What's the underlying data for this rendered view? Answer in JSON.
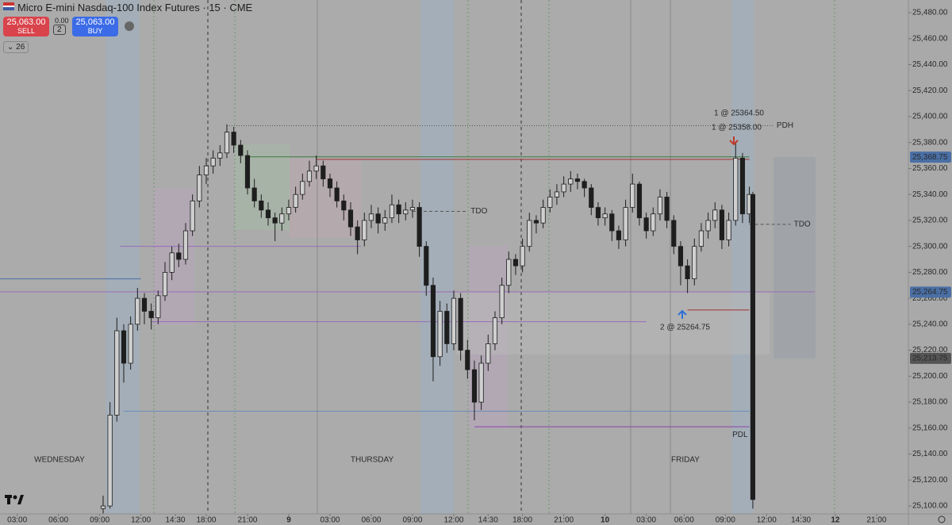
{
  "header": {
    "title": "Micro E-mini Nasdaq-100 Index Futures · 15 · CME",
    "sell_price": "25,063.00",
    "sell_label": "SELL",
    "spread": "0.00",
    "quantity": "2",
    "buy_price": "25,063.00",
    "buy_label": "BUY",
    "indicators": "26"
  },
  "chart_data": {
    "type": "candlestick",
    "xlim": [
      0,
      264.25
    ],
    "ylim": [
      25093.9,
      25489.8
    ],
    "xticks": [
      {
        "value": 5,
        "label": "03:00"
      },
      {
        "value": 17,
        "label": "06:00"
      },
      {
        "value": 29,
        "label": "09:00"
      },
      {
        "value": 41,
        "label": "12:00"
      },
      {
        "value": 51,
        "label": "14:30"
      },
      {
        "value": 60,
        "label": "18:00"
      },
      {
        "value": 72,
        "label": "21:00"
      },
      {
        "value": 84,
        "label": "9"
      },
      {
        "value": 96,
        "label": "03:00"
      },
      {
        "value": 108,
        "label": "06:00"
      },
      {
        "value": 120,
        "label": "09:00"
      },
      {
        "value": 132,
        "label": "12:00"
      },
      {
        "value": 142,
        "label": "14:30"
      },
      {
        "value": 152,
        "label": "18:00"
      },
      {
        "value": 164,
        "label": "21:00"
      },
      {
        "value": 176,
        "label": "10"
      },
      {
        "value": 188,
        "label": "03:00"
      },
      {
        "value": 199,
        "label": "06:00"
      },
      {
        "value": 211,
        "label": "09:00"
      },
      {
        "value": 223,
        "label": "12:00"
      },
      {
        "value": 233,
        "label": "14:30"
      },
      {
        "value": 243,
        "label": "12"
      },
      {
        "value": 255,
        "label": "21:00"
      }
    ],
    "yticks": [
      {
        "value": 25100,
        "label": "25,100.00"
      },
      {
        "value": 25120,
        "label": "25,120.00"
      },
      {
        "value": 25140,
        "label": "25,140.00"
      },
      {
        "value": 25160,
        "label": "25,160.00"
      },
      {
        "value": 25180,
        "label": "25,180.00"
      },
      {
        "value": 25200,
        "label": "25,200.00"
      },
      {
        "value": 25220,
        "label": "25,220.00"
      },
      {
        "value": 25240,
        "label": "25,240.00"
      },
      {
        "value": 25260,
        "label": "25,260.00"
      },
      {
        "value": 25280,
        "label": "25,280.00"
      },
      {
        "value": 25300,
        "label": "25,300.00"
      },
      {
        "value": 25320,
        "label": "25,320.00"
      },
      {
        "value": 25340,
        "label": "25,340.00"
      },
      {
        "value": 25360,
        "label": "25,360.00"
      },
      {
        "value": 25380,
        "label": "25,380.00"
      },
      {
        "value": 25400,
        "label": "25,400.00"
      },
      {
        "value": 25420,
        "label": "25,420.00"
      },
      {
        "value": 25440,
        "label": "25,440.00"
      },
      {
        "value": 25460,
        "label": "25,460.00"
      },
      {
        "value": 25480,
        "label": "25,480.00"
      }
    ],
    "up_color": "#cfcfcf",
    "down_color": "#1e1e1e",
    "x": [
      30,
      32,
      34,
      36,
      38,
      40,
      42,
      44,
      46,
      48,
      50,
      52,
      54,
      56,
      58,
      60,
      62,
      64,
      66,
      68,
      70,
      72,
      74,
      76,
      78,
      80,
      82,
      84,
      86,
      88,
      90,
      92,
      94,
      96,
      98,
      100,
      102,
      104,
      106,
      108,
      110,
      112,
      114,
      116,
      118,
      120,
      122,
      124,
      126,
      128,
      130,
      132,
      134,
      136,
      138,
      140,
      142,
      144,
      146,
      148,
      150,
      152,
      154,
      156,
      158,
      160,
      162,
      164,
      166,
      168,
      170,
      172,
      174,
      176,
      178,
      180,
      182,
      184,
      186,
      188,
      190,
      192,
      194,
      196,
      198,
      200,
      202,
      204,
      206,
      208,
      210,
      212,
      214,
      216,
      218,
      219
    ],
    "ohlc": [
      [
        25098,
        25108,
        25094,
        25100
      ],
      [
        25100,
        25180,
        25098,
        25170
      ],
      [
        25170,
        25245,
        25165,
        25235
      ],
      [
        25235,
        25240,
        25195,
        25210
      ],
      [
        25210,
        25246,
        25205,
        25240
      ],
      [
        25240,
        25268,
        25235,
        25260
      ],
      [
        25260,
        25264,
        25240,
        25250
      ],
      [
        25250,
        25256,
        25236,
        25245
      ],
      [
        25245,
        25266,
        25240,
        25262
      ],
      [
        25262,
        25288,
        25258,
        25280
      ],
      [
        25280,
        25300,
        25274,
        25295
      ],
      [
        25295,
        25302,
        25284,
        25290
      ],
      [
        25290,
        25318,
        25286,
        25312
      ],
      [
        25312,
        25340,
        25308,
        25335
      ],
      [
        25335,
        25362,
        25330,
        25355
      ],
      [
        25355,
        25368,
        25348,
        25362
      ],
      [
        25362,
        25374,
        25356,
        25368
      ],
      [
        25368,
        25378,
        25362,
        25372
      ],
      [
        25372,
        25394,
        25368,
        25388
      ],
      [
        25388,
        25392,
        25372,
        25378
      ],
      [
        25378,
        25382,
        25364,
        25370
      ],
      [
        25370,
        25374,
        25340,
        25345
      ],
      [
        25345,
        25352,
        25330,
        25335
      ],
      [
        25335,
        25340,
        25322,
        25328
      ],
      [
        25328,
        25334,
        25316,
        25322
      ],
      [
        25322,
        25326,
        25304,
        25318
      ],
      [
        25318,
        25330,
        25312,
        25325
      ],
      [
        25325,
        25336,
        25320,
        25330
      ],
      [
        25330,
        25346,
        25326,
        25340
      ],
      [
        25340,
        25356,
        25336,
        25350
      ],
      [
        25350,
        25366,
        25346,
        25358
      ],
      [
        25358,
        25370,
        25352,
        25362
      ],
      [
        25362,
        25366,
        25346,
        25352
      ],
      [
        25352,
        25356,
        25338,
        25345
      ],
      [
        25345,
        25350,
        25330,
        25335
      ],
      [
        25335,
        25340,
        25320,
        25328
      ],
      [
        25328,
        25334,
        25308,
        25315
      ],
      [
        25315,
        25320,
        25294,
        25305
      ],
      [
        25305,
        25326,
        25300,
        25320
      ],
      [
        25320,
        25332,
        25314,
        25325
      ],
      [
        25325,
        25330,
        25310,
        25318
      ],
      [
        25318,
        25328,
        25312,
        25322
      ],
      [
        25322,
        25340,
        25318,
        25332
      ],
      [
        25332,
        25336,
        25318,
        25325
      ],
      [
        25325,
        25334,
        25320,
        25328
      ],
      [
        25328,
        25336,
        25322,
        25330
      ],
      [
        25330,
        25334,
        25292,
        25300
      ],
      [
        25300,
        25304,
        25262,
        25270
      ],
      [
        25270,
        25276,
        25196,
        25215
      ],
      [
        25215,
        25258,
        25208,
        25250
      ],
      [
        25250,
        25256,
        25218,
        25225
      ],
      [
        25225,
        25266,
        25220,
        25260
      ],
      [
        25260,
        25264,
        25212,
        25220
      ],
      [
        25220,
        25228,
        25198,
        25205
      ],
      [
        25205,
        25212,
        25166,
        25180
      ],
      [
        25180,
        25216,
        25174,
        25210
      ],
      [
        25210,
        25232,
        25204,
        25225
      ],
      [
        25225,
        25250,
        25220,
        25245
      ],
      [
        25245,
        25276,
        25240,
        25270
      ],
      [
        25270,
        25296,
        25264,
        25290
      ],
      [
        25290,
        25294,
        25278,
        25285
      ],
      [
        25285,
        25306,
        25280,
        25300
      ],
      [
        25300,
        25326,
        25296,
        25320
      ],
      [
        25320,
        25324,
        25310,
        25318
      ],
      [
        25318,
        25336,
        25314,
        25330
      ],
      [
        25330,
        25344,
        25326,
        25338
      ],
      [
        25338,
        25348,
        25332,
        25342
      ],
      [
        25342,
        25354,
        25338,
        25348
      ],
      [
        25348,
        25358,
        25342,
        25352
      ],
      [
        25352,
        25356,
        25344,
        25350
      ],
      [
        25350,
        25352,
        25338,
        25345
      ],
      [
        25345,
        25348,
        25324,
        25330
      ],
      [
        25330,
        25334,
        25316,
        25322
      ],
      [
        25322,
        25330,
        25316,
        25325
      ],
      [
        25325,
        25328,
        25304,
        25312
      ],
      [
        25312,
        25316,
        25298,
        25305
      ],
      [
        25305,
        25336,
        25300,
        25330
      ],
      [
        25330,
        25356,
        25326,
        25348
      ],
      [
        25348,
        25350,
        25316,
        25322
      ],
      [
        25322,
        25326,
        25306,
        25312
      ],
      [
        25312,
        25330,
        25308,
        25325
      ],
      [
        25325,
        25344,
        25320,
        25338
      ],
      [
        25338,
        25342,
        25314,
        25320
      ],
      [
        25320,
        25324,
        25294,
        25300
      ],
      [
        25300,
        25304,
        25270,
        25285
      ],
      [
        25285,
        25290,
        25264,
        25275
      ],
      [
        25275,
        25306,
        25270,
        25300
      ],
      [
        25300,
        25318,
        25296,
        25312
      ],
      [
        25312,
        25326,
        25306,
        25320
      ],
      [
        25320,
        25334,
        25314,
        25328
      ],
      [
        25328,
        25332,
        25298,
        25305
      ],
      [
        25305,
        25326,
        25300,
        25320
      ],
      [
        25320,
        25380,
        25316,
        25368
      ],
      [
        25368,
        25372,
        25318,
        25325
      ],
      [
        25325,
        25346,
        25318,
        25340
      ],
      [
        25340,
        25342,
        25098,
        25105
      ]
    ],
    "levels": [
      {
        "value": 25275,
        "start": 0,
        "end": 41,
        "color": "#4a6fa5",
        "style": "solid"
      },
      {
        "value": 25265,
        "start": 0,
        "end": 237,
        "color": "#9b6bb8",
        "style": "solid"
      },
      {
        "value": 25393,
        "start": 66,
        "end": 225,
        "color": "#555555",
        "style": "dotted",
        "label": "PDH"
      },
      {
        "value": 25369,
        "start": 72,
        "end": 218,
        "color": "#3d7a3d",
        "style": "solid"
      },
      {
        "value": 25367,
        "start": 92,
        "end": 218,
        "color": "#a03030",
        "style": "solid"
      },
      {
        "value": 25161,
        "start": 138,
        "end": 218,
        "color": "#8e44ad",
        "style": "solid",
        "label": "PDL"
      },
      {
        "value": 25251,
        "start": 200,
        "end": 218,
        "color": "#a03030",
        "style": "solid"
      },
      {
        "value": 25327,
        "start": 120,
        "end": 136,
        "color": "#555555",
        "style": "dashed",
        "label": "TDO"
      },
      {
        "value": 25317,
        "start": 218,
        "end": 230,
        "color": "#555555",
        "style": "dashed",
        "label": "TDO"
      },
      {
        "value": 25300,
        "start": 35,
        "end": 105,
        "color": "#9b6bb8",
        "style": "solid"
      },
      {
        "value": 25242,
        "start": 44,
        "end": 188,
        "color": "#9b6bb8",
        "style": "solid"
      },
      {
        "value": 25173,
        "start": 36,
        "end": 218,
        "color": "#6b8cba",
        "style": "solid"
      }
    ],
    "price_badges": [
      {
        "value": 25368.75,
        "label": "25,368.75",
        "color": "#4a6fa5"
      },
      {
        "value": 25264.75,
        "label": "25,264.75",
        "color": "#4a6fa5"
      },
      {
        "value": 25213.75,
        "label": "25,213.75",
        "color": "#555555"
      }
    ],
    "annotations": [
      "1 @ 25364.50",
      "1 @ 25358.00",
      "2 @ 25264.75"
    ],
    "day_labels": [
      "WEDNESDAY",
      "THURSDAY",
      "FRIDAY"
    ]
  }
}
